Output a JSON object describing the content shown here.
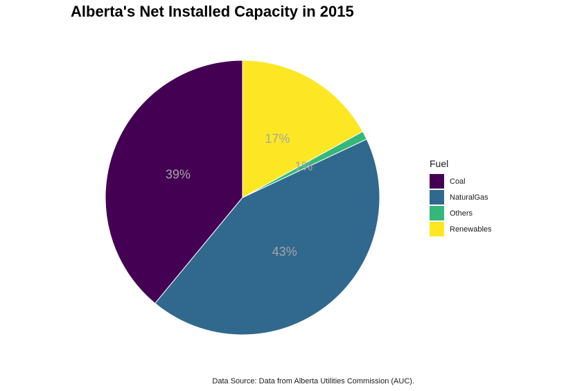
{
  "chart_data": {
    "type": "pie",
    "title": "Alberta's Net Installed Capacity in 2015",
    "caption": "Data Source:  Data from Alberta Utilities Commission (AUC).",
    "legend_title": "Fuel",
    "legend_position": "right",
    "categories": [
      "Coal",
      "NaturalGas",
      "Others",
      "Renewables"
    ],
    "values": [
      39,
      43,
      1,
      17
    ],
    "labels": [
      "39%",
      "43%",
      "1%",
      "17%"
    ],
    "colors": [
      "#440154",
      "#31688E",
      "#35B779",
      "#FDE725"
    ],
    "start": "top",
    "direction": "counterclockwise"
  }
}
